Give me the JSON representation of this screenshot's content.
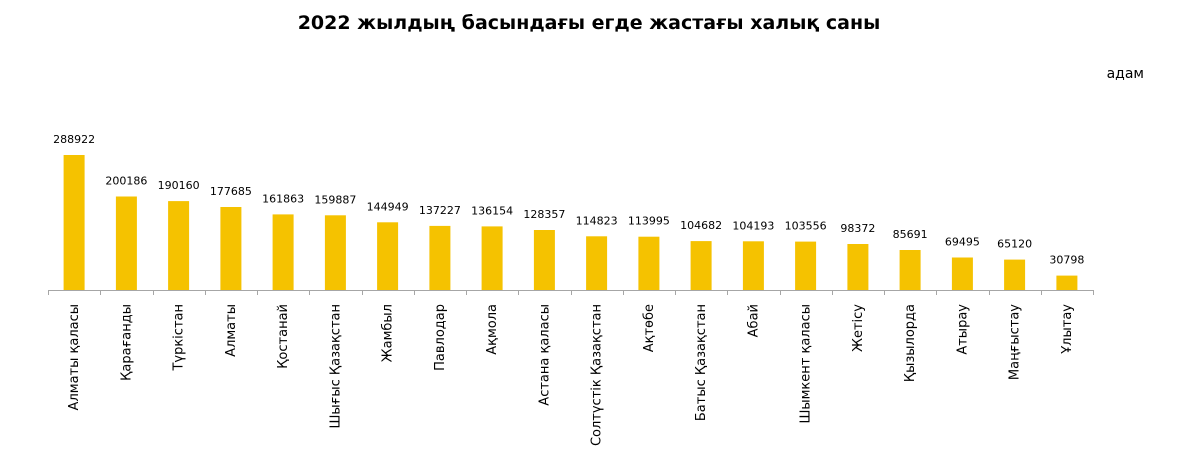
{
  "chart_data": {
    "type": "bar",
    "title": "2022 жылдың басындағы егде жастағы халық саны",
    "unit": "адам",
    "xlabel": "",
    "ylabel": "",
    "ylim": [
      0,
      300000
    ],
    "grid": false,
    "legend": "none",
    "bar_color": "#F5C200",
    "axis_color": "#A6A6A6",
    "categories": [
      "Алматы қаласы",
      "Қарағанды",
      "Түркістан",
      "Алматы",
      "Қостанай",
      "Шығыс Қазақстан",
      "Жамбыл",
      "Павлодар",
      "Ақмола",
      "Астана қаласы",
      "Солтүстік Қазақстан",
      "Ақтөбе",
      "Батыс Қазақстан",
      "Абай",
      "Шымкент қаласы",
      "Жетісу",
      "Қызылорда",
      "Атырау",
      "Маңғыстау",
      "Ұлытау"
    ],
    "values": [
      288922,
      200186,
      190160,
      177685,
      161863,
      159887,
      144949,
      137227,
      136154,
      128357,
      114823,
      113995,
      104682,
      104193,
      103556,
      98372,
      85691,
      69495,
      65120,
      30798
    ],
    "value_labels": [
      "288922",
      "200186",
      "190160",
      "177685",
      "161863",
      "159887",
      "144949",
      "137227",
      "136154",
      "128357",
      "114823",
      "113995",
      "104682",
      "104193",
      "103556",
      "98372",
      "85691",
      "69495",
      "65120",
      "30798"
    ]
  }
}
